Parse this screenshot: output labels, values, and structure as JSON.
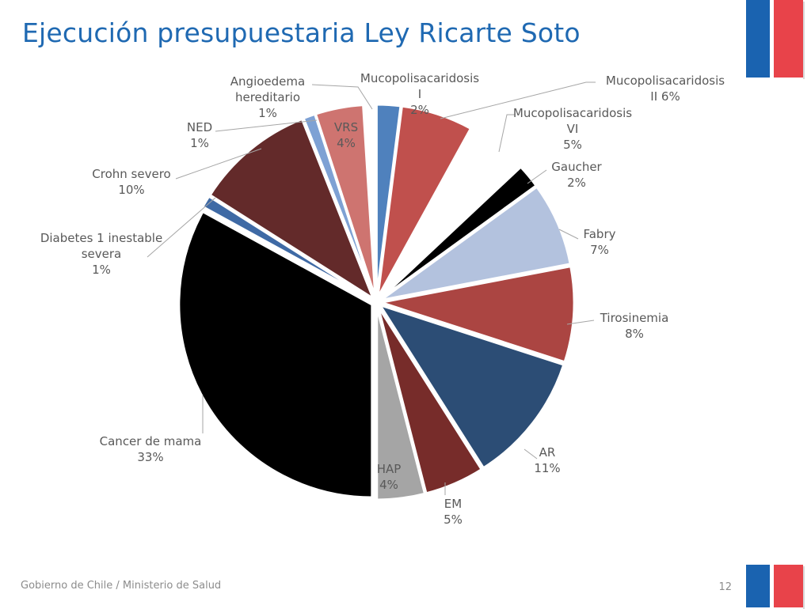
{
  "slide": {
    "title": "Ejecución presupuestaria Ley Ricarte Soto",
    "footer": "Gobierno de Chile / Ministerio de Salud",
    "page_number": "12"
  },
  "colors": {
    "title": "#1f69b2",
    "flag_blue": "#1a63b0",
    "flag_red": "#e8434a"
  },
  "chart_data": {
    "type": "pie",
    "title": "",
    "start_angle_deg": 0,
    "direction": "clockwise",
    "exploded": true,
    "slices": [
      {
        "name": "Mucopolisacaridosis I",
        "value": 2,
        "pct_label": "2%",
        "label_lines": [
          "Mucopolisacaridosis",
          "I",
          "2%"
        ],
        "color": "#4f81bd"
      },
      {
        "name": "Mucopolisacaridosis II",
        "value": 6,
        "pct_label": "6%",
        "label_lines": [
          "Mucopolisacaridosis",
          "II 6%"
        ],
        "color": "#c0504d"
      },
      {
        "name": "Mucopolisacaridosis VI",
        "value": 5,
        "pct_label": "5%",
        "label_lines": [
          "Mucopolisacaridosis",
          "VI",
          "5%"
        ],
        "color": "#ffffff"
      },
      {
        "name": "Gaucher",
        "value": 2,
        "pct_label": "2%",
        "label_lines": [
          "Gaucher",
          "2%"
        ],
        "color": "#000000"
      },
      {
        "name": "Fabry",
        "value": 7,
        "pct_label": "7%",
        "label_lines": [
          "Fabry",
          "7%"
        ],
        "color": "#b3c2de"
      },
      {
        "name": "Tirosinemia",
        "value": 8,
        "pct_label": "8%",
        "label_lines": [
          "Tirosinemia",
          "8%"
        ],
        "color": "#ab4542"
      },
      {
        "name": "AR",
        "value": 11,
        "pct_label": "11%",
        "label_lines": [
          "AR",
          "11%"
        ],
        "color": "#2c4d75"
      },
      {
        "name": "EM",
        "value": 5,
        "pct_label": "5%",
        "label_lines": [
          "EM",
          "5%"
        ],
        "color": "#772c2a"
      },
      {
        "name": "HAP",
        "value": 4,
        "pct_label": "4%",
        "label_lines": [
          "HAP",
          "4%"
        ],
        "color": "#a5a5a5"
      },
      {
        "name": "Cancer de mama",
        "value": 33,
        "pct_label": "33%",
        "label_lines": [
          "Cancer de mama",
          "33%"
        ],
        "color": "#000000"
      },
      {
        "name": "Diabetes 1 inestable severa",
        "value": 1,
        "pct_label": "1%",
        "label_lines": [
          "Diabetes 1 inestable",
          "severa",
          "1%"
        ],
        "color": "#3f6aa5"
      },
      {
        "name": "Crohn severo",
        "value": 10,
        "pct_label": "10%",
        "label_lines": [
          "Crohn severo",
          "10%"
        ],
        "color": "#632a2a"
      },
      {
        "name": "NED",
        "value": 1,
        "pct_label": "1%",
        "label_lines": [
          "NED",
          "1%"
        ],
        "color": "#7ea1d4"
      },
      {
        "name": "VRS",
        "value": 4,
        "pct_label": "4%",
        "label_lines": [
          "VRS",
          "4%"
        ],
        "color": "#ce7470"
      },
      {
        "name": "Angioedema hereditario",
        "value": 1,
        "pct_label": "1%",
        "label_lines": [
          "Angioedema",
          "hereditario",
          "1%"
        ],
        "color": "#ffffff"
      }
    ]
  }
}
